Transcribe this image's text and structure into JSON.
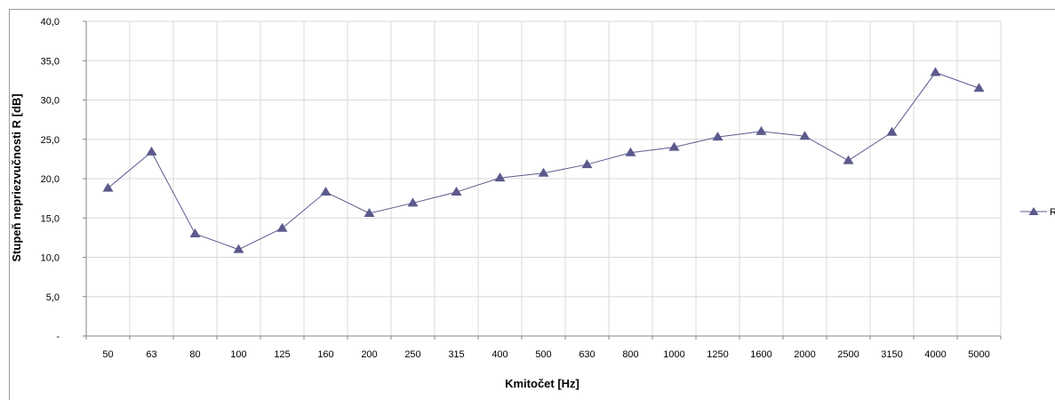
{
  "chart_data": {
    "type": "line",
    "title": "",
    "xlabel": "Kmitočet  [Hz]",
    "ylabel": "Stupeň nepriezvučnosti  R [dB]",
    "categories": [
      "50",
      "63",
      "80",
      "100",
      "125",
      "160",
      "200",
      "250",
      "315",
      "400",
      "500",
      "630",
      "800",
      "1000",
      "1250",
      "1600",
      "2000",
      "2500",
      "3150",
      "4000",
      "5000"
    ],
    "ylim": [
      0,
      40
    ],
    "yticks": [
      "-",
      "5,0",
      "10,0",
      "15,0",
      "20,0",
      "25,0",
      "30,0",
      "35,0",
      "40,0"
    ],
    "grid": true,
    "legend_position": "right",
    "series": [
      {
        "name": "R",
        "color": "#5b5a8c",
        "marker": "triangle",
        "values": [
          18.8,
          23.4,
          13.0,
          11.0,
          13.7,
          18.3,
          15.6,
          16.9,
          18.3,
          20.1,
          20.7,
          21.8,
          23.3,
          24.0,
          25.3,
          26.0,
          25.4,
          22.3,
          25.9,
          33.5,
          31.5
        ]
      }
    ]
  }
}
